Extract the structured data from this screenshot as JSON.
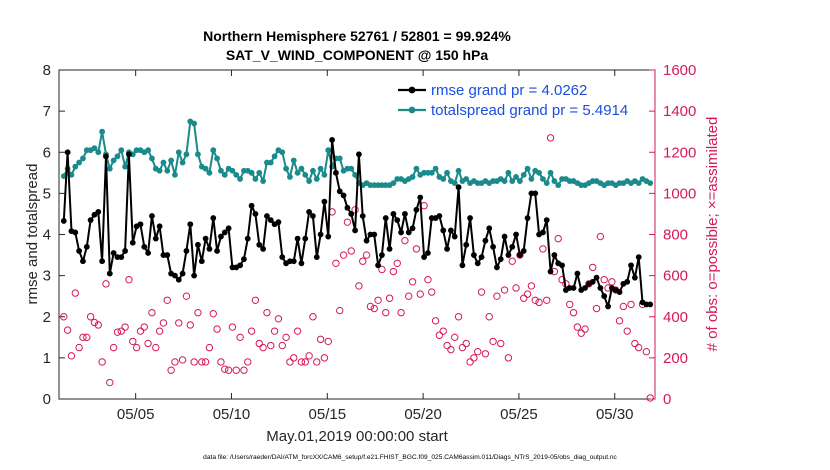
{
  "colors": {
    "rmse": "#000000",
    "spread": "#1a8a8a",
    "obs": "#d6195a",
    "legend_text": "#1a4fe0",
    "axis": "#262626"
  },
  "chart_data": {
    "type": "line",
    "title": "Northern Hemisphere 52761 / 52801 = 99.924%",
    "subtitle": "SAT_V_WIND_COMPONENT @ 150 hPa",
    "xlabel": "May.01,2019 00:00:00 start",
    "ylabel_left": "rmse and totalspread",
    "ylabel_right": "# of obs: o=possible; ×=assimilated",
    "footnote": "data file: /Users/raeder/DAI/ATM_forcXX/CAM6_setup/f.e21.FHIST_BGC.f09_025.CAM6assim.011/Diags_NTrS_2019-05/obs_diag_output.nc",
    "xlim": [
      1,
      32.1
    ],
    "ylim_left": [
      0,
      8
    ],
    "ylim_right": [
      0,
      1600
    ],
    "x_ticks": [
      5,
      10,
      15,
      20,
      25,
      30
    ],
    "x_tick_labels": [
      "05/05",
      "05/10",
      "05/15",
      "05/20",
      "05/25",
      "05/30"
    ],
    "y_left_ticks": [
      "0",
      "1",
      "2",
      "3",
      "4",
      "5",
      "6",
      "7",
      "8"
    ],
    "y_right_ticks": [
      "0",
      "200",
      "400",
      "600",
      "800",
      "1000",
      "1200",
      "1400",
      "1600"
    ],
    "legend": [
      {
        "name": "rmse grand pr = 4.0262"
      },
      {
        "name": "totalspread grand pr = 5.4914"
      }
    ],
    "series": [
      {
        "name": "rmse",
        "axis": "left",
        "values": [
          4.33,
          6.0,
          4.08,
          4.05,
          3.6,
          3.35,
          3.7,
          4.35,
          4.48,
          4.55,
          3.35,
          5.9,
          3.05,
          3.55,
          3.45,
          3.45,
          3.6,
          5.95,
          3.8,
          4.2,
          4.25,
          3.7,
          3.55,
          4.45,
          3.9,
          4.2,
          3.5,
          3.5,
          3.05,
          3.0,
          2.9,
          3.05,
          3.6,
          4.25,
          3.0,
          3.75,
          3.35,
          3.9,
          3.65,
          4.4,
          3.6,
          3.95,
          4.05,
          4.15,
          3.2,
          3.2,
          3.25,
          3.4,
          3.9,
          4.7,
          4.5,
          3.75,
          3.65,
          4.45,
          4.35,
          4.25,
          4.3,
          3.45,
          3.3,
          3.35,
          3.35,
          3.9,
          3.3,
          3.9,
          4.55,
          4.45,
          3.45,
          4.0,
          4.8,
          3.95,
          6.3,
          5.5,
          5.05,
          4.95,
          4.65,
          4.5,
          4.1,
          5.95,
          4.45,
          3.85,
          4.0,
          4.0,
          3.25,
          3.5,
          4.4,
          3.65,
          4.5,
          4.35,
          4.05,
          4.5,
          4.05,
          4.15,
          4.6,
          4.9,
          3.45,
          3.55,
          4.4,
          4.4,
          4.45,
          4.1,
          3.65,
          4.1,
          3.95,
          5.15,
          3.25,
          3.75,
          4.4,
          3.5,
          3.3,
          3.45,
          3.85,
          4.15,
          3.7,
          3.2,
          3.4,
          3.95,
          3.5,
          3.7,
          4.0,
          3.5,
          3.6,
          4.4,
          5.0,
          5.0,
          4.0,
          4.05,
          4.35,
          3.1,
          3.5,
          3.3,
          3.25,
          2.65,
          2.7,
          2.7,
          3.05,
          2.65,
          2.7,
          2.8,
          2.85,
          2.95,
          2.7,
          2.5,
          2.25,
          2.7,
          2.65,
          2.6,
          2.8,
          2.85,
          3.25,
          2.95,
          3.45,
          2.35,
          2.3,
          2.3
        ]
      },
      {
        "name": "totalspread",
        "axis": "left",
        "values": [
          5.42,
          5.6,
          5.45,
          5.65,
          5.75,
          5.85,
          6.05,
          6.05,
          6.1,
          6.0,
          6.5,
          5.95,
          5.6,
          5.8,
          5.9,
          6.05,
          5.65,
          6.0,
          5.95,
          6.05,
          6.05,
          6.0,
          6.05,
          5.85,
          5.6,
          5.55,
          5.75,
          5.55,
          5.8,
          5.45,
          6.0,
          5.75,
          5.95,
          6.75,
          6.7,
          5.95,
          5.65,
          5.6,
          5.5,
          6.05,
          5.85,
          5.55,
          5.45,
          5.6,
          5.55,
          5.45,
          5.35,
          5.55,
          5.55,
          5.5,
          5.35,
          5.5,
          5.3,
          5.75,
          5.75,
          5.9,
          6.05,
          6.0,
          5.6,
          5.4,
          5.8,
          5.5,
          5.6,
          5.45,
          5.3,
          5.55,
          5.35,
          5.6,
          5.45,
          6.05,
          5.65,
          5.85,
          5.85,
          5.55,
          5.6,
          5.6,
          5.45,
          5.25,
          5.2,
          5.25,
          5.2,
          5.2,
          5.2,
          5.2,
          5.2,
          5.2,
          5.25,
          5.35,
          5.35,
          5.3,
          5.35,
          5.4,
          5.6,
          5.45,
          5.5,
          5.5,
          5.5,
          5.6,
          5.4,
          5.35,
          5.5,
          5.3,
          5.25,
          5.55,
          5.3,
          5.35,
          5.25,
          5.3,
          5.25,
          5.25,
          5.3,
          5.25,
          5.3,
          5.3,
          5.35,
          5.3,
          5.5,
          5.3,
          5.4,
          5.3,
          5.45,
          5.6,
          5.35,
          5.55,
          5.5,
          5.35,
          5.25,
          5.5,
          5.3,
          5.2,
          5.35,
          5.35,
          5.3,
          5.3,
          5.25,
          5.2,
          5.2,
          5.25,
          5.3,
          5.3,
          5.25,
          5.2,
          5.25,
          5.25,
          5.2,
          5.25,
          5.25,
          5.3,
          5.25,
          5.3,
          5.25,
          5.35,
          5.3,
          5.25
        ]
      },
      {
        "name": "obs",
        "axis": "right",
        "values": [
          400,
          335,
          210,
          515,
          250,
          300,
          300,
          400,
          372,
          360,
          180,
          560,
          80,
          250,
          325,
          330,
          350,
          580,
          280,
          250,
          330,
          350,
          270,
          420,
          250,
          330,
          370,
          480,
          140,
          180,
          370,
          190,
          500,
          360,
          180,
          420,
          180,
          180,
          250,
          415,
          340,
          180,
          145,
          140,
          350,
          140,
          300,
          140,
          180,
          330,
          480,
          270,
          250,
          420,
          260,
          330,
          390,
          260,
          300,
          180,
          200,
          330,
          180,
          180,
          210,
          400,
          180,
          290,
          200,
          280,
          910,
          660,
          430,
          700,
          860,
          720,
          920,
          550,
          670,
          700,
          450,
          440,
          480,
          630,
          420,
          490,
          620,
          660,
          420,
          770,
          500,
          570,
          730,
          510,
          940,
          580,
          520,
          380,
          310,
          330,
          260,
          240,
          300,
          400,
          250,
          270,
          180,
          200,
          230,
          520,
          220,
          400,
          280,
          500,
          270,
          530,
          200,
          670,
          540,
          700,
          490,
          510,
          550,
          480,
          470,
          730,
          480,
          1270,
          620,
          780,
          580,
          560,
          460,
          420,
          350,
          320,
          340,
          560,
          640,
          440,
          790,
          580,
          540,
          570,
          530,
          380,
          450,
          330,
          460,
          270,
          250,
          460,
          230,
          5
        ]
      }
    ]
  }
}
